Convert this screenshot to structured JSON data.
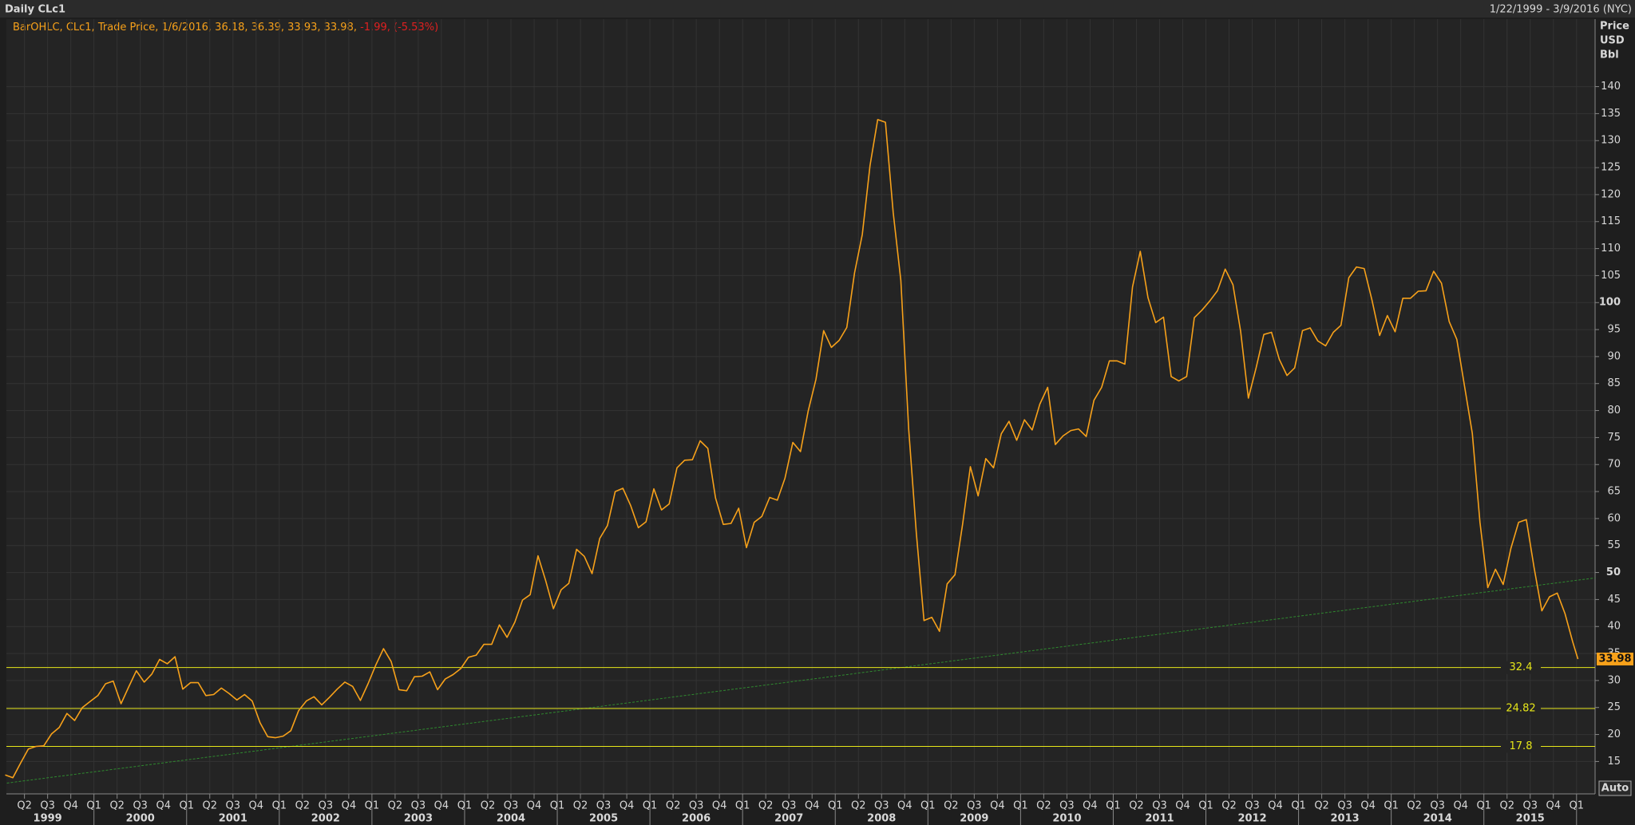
{
  "header": {
    "title": "Daily CLc1",
    "range": "1/22/1999 - 3/9/2016 (NYC)",
    "legend_text": "BarOHLC, CLc1, Trade Price, 1/6/2016, 36.18, 36.39, 33.93, 33.98,",
    "legend_change": "-1.99, (-5.53%)",
    "auto_button": "Auto"
  },
  "chart_data": {
    "type": "line",
    "y_unit": [
      "Price",
      "USD",
      "Bbl"
    ],
    "xlim": [
      1999.055,
      2016.2
    ],
    "ylim": [
      9,
      152.5
    ],
    "yticks": [
      15,
      20,
      25,
      30,
      35,
      40,
      45,
      50,
      55,
      60,
      65,
      70,
      75,
      80,
      85,
      90,
      95,
      100,
      105,
      110,
      115,
      120,
      125,
      130,
      135,
      140
    ],
    "bold_yticks": [
      50,
      100
    ],
    "xticks": [
      {
        "value": 1999.25,
        "label": "Q2"
      },
      {
        "value": 1999.5,
        "label": "Q3"
      },
      {
        "value": 1999.75,
        "label": "Q4"
      },
      {
        "value": 2000,
        "label": "Q1"
      },
      {
        "value": 2000.25,
        "label": "Q2"
      },
      {
        "value": 2000.5,
        "label": "Q3"
      },
      {
        "value": 2000.75,
        "label": "Q4"
      },
      {
        "value": 2001,
        "label": "Q1"
      },
      {
        "value": 2001.25,
        "label": "Q2"
      },
      {
        "value": 2001.5,
        "label": "Q3"
      },
      {
        "value": 2001.75,
        "label": "Q4"
      },
      {
        "value": 2002,
        "label": "Q1"
      },
      {
        "value": 2002.25,
        "label": "Q2"
      },
      {
        "value": 2002.5,
        "label": "Q3"
      },
      {
        "value": 2002.75,
        "label": "Q4"
      },
      {
        "value": 2003,
        "label": "Q1"
      },
      {
        "value": 2003.25,
        "label": "Q2"
      },
      {
        "value": 2003.5,
        "label": "Q3"
      },
      {
        "value": 2003.75,
        "label": "Q4"
      },
      {
        "value": 2004,
        "label": "Q1"
      },
      {
        "value": 2004.25,
        "label": "Q2"
      },
      {
        "value": 2004.5,
        "label": "Q3"
      },
      {
        "value": 2004.75,
        "label": "Q4"
      },
      {
        "value": 2005,
        "label": "Q1"
      },
      {
        "value": 2005.25,
        "label": "Q2"
      },
      {
        "value": 2005.5,
        "label": "Q3"
      },
      {
        "value": 2005.75,
        "label": "Q4"
      },
      {
        "value": 2006,
        "label": "Q1"
      },
      {
        "value": 2006.25,
        "label": "Q2"
      },
      {
        "value": 2006.5,
        "label": "Q3"
      },
      {
        "value": 2006.75,
        "label": "Q4"
      },
      {
        "value": 2007,
        "label": "Q1"
      },
      {
        "value": 2007.25,
        "label": "Q2"
      },
      {
        "value": 2007.5,
        "label": "Q3"
      },
      {
        "value": 2007.75,
        "label": "Q4"
      },
      {
        "value": 2008,
        "label": "Q1"
      },
      {
        "value": 2008.25,
        "label": "Q2"
      },
      {
        "value": 2008.5,
        "label": "Q3"
      },
      {
        "value": 2008.75,
        "label": "Q4"
      },
      {
        "value": 2009,
        "label": "Q1"
      },
      {
        "value": 2009.25,
        "label": "Q2"
      },
      {
        "value": 2009.5,
        "label": "Q3"
      },
      {
        "value": 2009.75,
        "label": "Q4"
      },
      {
        "value": 2010,
        "label": "Q1"
      },
      {
        "value": 2010.25,
        "label": "Q2"
      },
      {
        "value": 2010.5,
        "label": "Q3"
      },
      {
        "value": 2010.75,
        "label": "Q4"
      },
      {
        "value": 2011,
        "label": "Q1"
      },
      {
        "value": 2011.25,
        "label": "Q2"
      },
      {
        "value": 2011.5,
        "label": "Q3"
      },
      {
        "value": 2011.75,
        "label": "Q4"
      },
      {
        "value": 2012,
        "label": "Q1"
      },
      {
        "value": 2012.25,
        "label": "Q2"
      },
      {
        "value": 2012.5,
        "label": "Q3"
      },
      {
        "value": 2012.75,
        "label": "Q4"
      },
      {
        "value": 2013,
        "label": "Q1"
      },
      {
        "value": 2013.25,
        "label": "Q2"
      },
      {
        "value": 2013.5,
        "label": "Q3"
      },
      {
        "value": 2013.75,
        "label": "Q4"
      },
      {
        "value": 2014,
        "label": "Q1"
      },
      {
        "value": 2014.25,
        "label": "Q2"
      },
      {
        "value": 2014.5,
        "label": "Q3"
      },
      {
        "value": 2014.75,
        "label": "Q4"
      },
      {
        "value": 2015,
        "label": "Q1"
      },
      {
        "value": 2015.25,
        "label": "Q2"
      },
      {
        "value": 2015.5,
        "label": "Q3"
      },
      {
        "value": 2015.75,
        "label": "Q4"
      },
      {
        "value": 2016,
        "label": "Q1"
      }
    ],
    "year_labels": [
      {
        "value": 1999.5,
        "label": "1999"
      },
      {
        "value": 2000.5,
        "label": "2000"
      },
      {
        "value": 2001.5,
        "label": "2001"
      },
      {
        "value": 2002.5,
        "label": "2002"
      },
      {
        "value": 2003.5,
        "label": "2003"
      },
      {
        "value": 2004.5,
        "label": "2004"
      },
      {
        "value": 2005.5,
        "label": "2005"
      },
      {
        "value": 2006.5,
        "label": "2006"
      },
      {
        "value": 2007.5,
        "label": "2007"
      },
      {
        "value": 2008.5,
        "label": "2008"
      },
      {
        "value": 2009.5,
        "label": "2009"
      },
      {
        "value": 2010.5,
        "label": "2010"
      },
      {
        "value": 2011.5,
        "label": "2011"
      },
      {
        "value": 2012.5,
        "label": "2012"
      },
      {
        "value": 2013.5,
        "label": "2013"
      },
      {
        "value": 2014.5,
        "label": "2014"
      },
      {
        "value": 2015.5,
        "label": "2015"
      }
    ],
    "x": [
      1999.042,
      1999.125,
      1999.208,
      1999.292,
      1999.375,
      1999.458,
      1999.542,
      1999.625,
      1999.708,
      1999.792,
      1999.875,
      1999.958,
      2000.042,
      2000.125,
      2000.208,
      2000.292,
      2000.375,
      2000.458,
      2000.542,
      2000.625,
      2000.708,
      2000.792,
      2000.875,
      2000.958,
      2001.042,
      2001.125,
      2001.208,
      2001.292,
      2001.375,
      2001.458,
      2001.542,
      2001.625,
      2001.708,
      2001.792,
      2001.875,
      2001.958,
      2002.042,
      2002.125,
      2002.208,
      2002.292,
      2002.375,
      2002.458,
      2002.542,
      2002.625,
      2002.708,
      2002.792,
      2002.875,
      2002.958,
      2003.042,
      2003.125,
      2003.208,
      2003.292,
      2003.375,
      2003.458,
      2003.542,
      2003.625,
      2003.708,
      2003.792,
      2003.875,
      2003.958,
      2004.042,
      2004.125,
      2004.208,
      2004.292,
      2004.375,
      2004.458,
      2004.542,
      2004.625,
      2004.708,
      2004.792,
      2004.875,
      2004.958,
      2005.042,
      2005.125,
      2005.208,
      2005.292,
      2005.375,
      2005.458,
      2005.542,
      2005.625,
      2005.708,
      2005.792,
      2005.875,
      2005.958,
      2006.042,
      2006.125,
      2006.208,
      2006.292,
      2006.375,
      2006.458,
      2006.542,
      2006.625,
      2006.708,
      2006.792,
      2006.875,
      2006.958,
      2007.042,
      2007.125,
      2007.208,
      2007.292,
      2007.375,
      2007.458,
      2007.542,
      2007.625,
      2007.708,
      2007.792,
      2007.875,
      2007.958,
      2008.042,
      2008.125,
      2008.208,
      2008.292,
      2008.375,
      2008.458,
      2008.542,
      2008.625,
      2008.708,
      2008.792,
      2008.875,
      2008.958,
      2009.042,
      2009.125,
      2009.208,
      2009.292,
      2009.375,
      2009.458,
      2009.542,
      2009.625,
      2009.708,
      2009.792,
      2009.875,
      2009.958,
      2010.042,
      2010.125,
      2010.208,
      2010.292,
      2010.375,
      2010.458,
      2010.542,
      2010.625,
      2010.708,
      2010.792,
      2010.875,
      2010.958,
      2011.042,
      2011.125,
      2011.208,
      2011.292,
      2011.375,
      2011.458,
      2011.542,
      2011.625,
      2011.708,
      2011.792,
      2011.875,
      2011.958,
      2012.042,
      2012.125,
      2012.208,
      2012.292,
      2012.375,
      2012.458,
      2012.542,
      2012.625,
      2012.708,
      2012.792,
      2012.875,
      2012.958,
      2013.042,
      2013.125,
      2013.208,
      2013.292,
      2013.375,
      2013.458,
      2013.542,
      2013.625,
      2013.708,
      2013.792,
      2013.875,
      2013.958,
      2014.042,
      2014.125,
      2014.208,
      2014.292,
      2014.375,
      2014.458,
      2014.542,
      2014.625,
      2014.708,
      2014.792,
      2014.875,
      2014.958,
      2015.042,
      2015.125,
      2015.208,
      2015.292,
      2015.375,
      2015.458,
      2015.542,
      2015.625,
      2015.708,
      2015.792,
      2015.875,
      2015.958,
      2016.015
    ],
    "series": [
      {
        "name": "CLc1",
        "color": "#f7a11a",
        "values": [
          12.5,
          12,
          14.7,
          17.3,
          17.8,
          17.9,
          20.1,
          21.3,
          23.9,
          22.6,
          25,
          26.1,
          27.2,
          29.4,
          29.9,
          25.7,
          28.8,
          31.8,
          29.7,
          31.2,
          33.9,
          33.1,
          34.4,
          28.4,
          29.6,
          29.6,
          27.2,
          27.4,
          28.6,
          27.6,
          26.4,
          27.4,
          26.2,
          22.2,
          19.6,
          19.4,
          19.7,
          20.7,
          24.4,
          26.2,
          27,
          25.5,
          26.9,
          28.4,
          29.7,
          28.9,
          26.3,
          29.4,
          32.9,
          35.9,
          33.5,
          28.3,
          28.1,
          30.7,
          30.8,
          31.6,
          28.3,
          30.3,
          31.1,
          32.2,
          34.3,
          34.7,
          36.7,
          36.7,
          40.3,
          38,
          40.8,
          44.9,
          45.9,
          53.1,
          48.5,
          43.3,
          46.8,
          48,
          54.3,
          53,
          49.8,
          56.3,
          58.7,
          65,
          65.6,
          62.4,
          58.3,
          59.4,
          65.5,
          61.6,
          62.7,
          69.4,
          70.8,
          70.9,
          74.4,
          73,
          63.8,
          58.9,
          59.1,
          61.9,
          54.6,
          59.3,
          60.4,
          63.9,
          63.4,
          67.5,
          74.1,
          72.4,
          79.9,
          85.8,
          94.8,
          91.7,
          93,
          95.4,
          105.5,
          112.6,
          125.4,
          133.9,
          133.4,
          116.7,
          104.1,
          76.6,
          57.3,
          41.1,
          41.7,
          39.1,
          47.9,
          49.6,
          59,
          69.6,
          64.2,
          71.1,
          69.4,
          75.7,
          78,
          74.5,
          78.3,
          76.4,
          81.2,
          84.3,
          73.7,
          75.3,
          76.3,
          76.6,
          75.2,
          81.9,
          84.3,
          89.2,
          89.2,
          88.6,
          102.9,
          109.5,
          100.9,
          96.3,
          97.3,
          86.3,
          85.5,
          86.3,
          97.2,
          98.6,
          100.3,
          102.2,
          106.2,
          103.3,
          94.7,
          82.3,
          87.9,
          94.1,
          94.5,
          89.5,
          86.5,
          87.9,
          94.8,
          95.3,
          92.9,
          92,
          94.5,
          95.8,
          104.6,
          106.6,
          106.3,
          100.5,
          93.9,
          97.6,
          94.6,
          100.8,
          100.8,
          102.1,
          102.2,
          105.8,
          103.6,
          96.5,
          93.2,
          84.4,
          75.8,
          59.3,
          47.2,
          50.6,
          47.8,
          54.5,
          59.3,
          59.8,
          50.9,
          42.9,
          45.5,
          46.2,
          42.4,
          37.2,
          33.98
        ]
      }
    ],
    "levels": [
      {
        "value": 32.4,
        "color": "#e6e619"
      },
      {
        "value": 24.82,
        "color": "#e6e619"
      },
      {
        "value": 17.8,
        "color": "#e6e619"
      }
    ],
    "trendline": {
      "x": [
        1999.06,
        2016.2
      ],
      "values": [
        11,
        49
      ],
      "color": "#2f8a2f"
    }
  }
}
